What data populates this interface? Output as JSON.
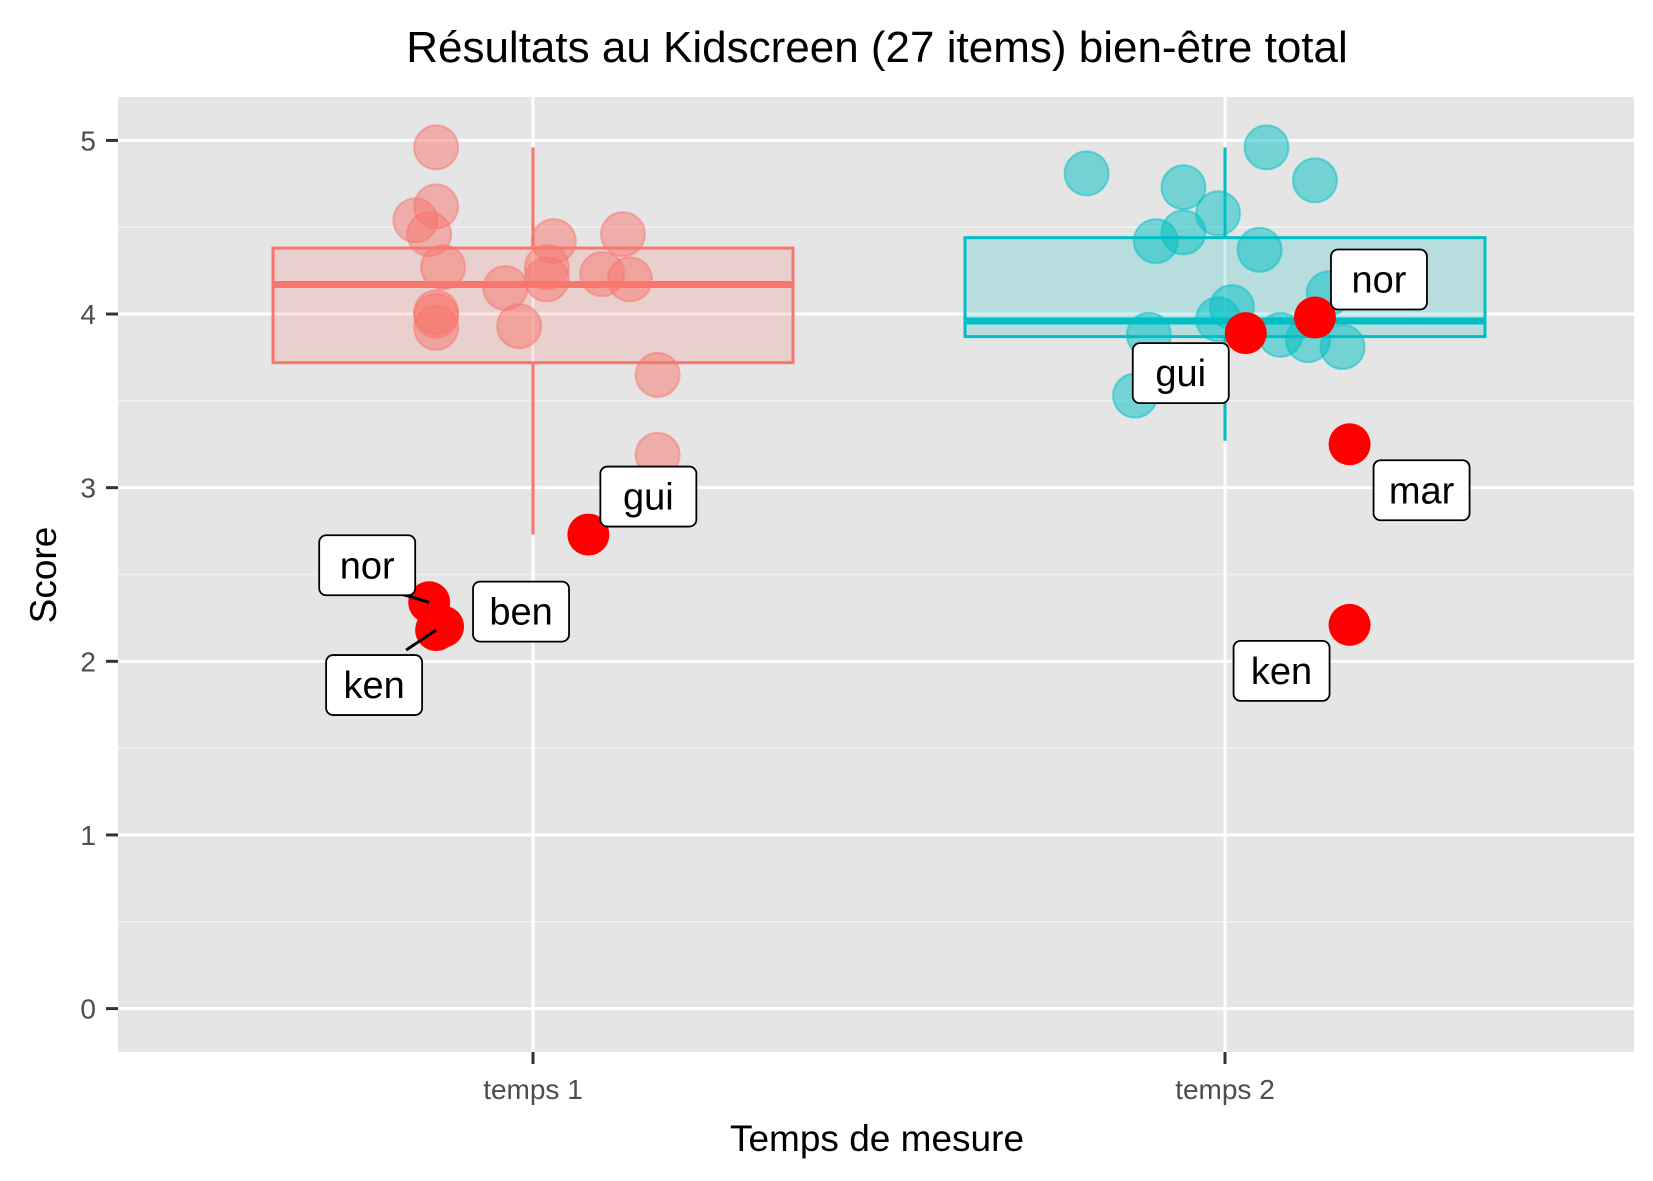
{
  "chart_data": {
    "type": "scatter",
    "title": "Résultats au Kidscreen (27 items) bien-être total",
    "xlabel": "Temps de mesure",
    "ylabel": "Score",
    "categories": [
      "temps 1",
      "temps 2"
    ],
    "ylim": [
      -0.25,
      5.25
    ],
    "yticks": [
      0,
      1,
      2,
      3,
      4,
      5
    ],
    "grid": true,
    "legend": "none",
    "colors": {
      "temps 1": "#f8766d",
      "temps 2": "#00bfc4",
      "highlight": "#ff0000",
      "panel": "#e5e5e5"
    },
    "boxplots": [
      {
        "category": "temps 1",
        "whisker_low": 2.73,
        "q1": 3.72,
        "median": 4.17,
        "q3": 4.38,
        "whisker_high": 4.96
      },
      {
        "category": "temps 2",
        "whisker_low": 3.27,
        "q1": 3.87,
        "median": 3.96,
        "q3": 4.44,
        "whisker_high": 4.96
      }
    ],
    "points": [
      {
        "category": "temps 1",
        "jitter": -0.14,
        "y": 4.96
      },
      {
        "category": "temps 1",
        "jitter": -0.14,
        "y": 4.62
      },
      {
        "category": "temps 1",
        "jitter": -0.17,
        "y": 4.54
      },
      {
        "category": "temps 1",
        "jitter": -0.15,
        "y": 4.46
      },
      {
        "category": "temps 1",
        "jitter": -0.13,
        "y": 4.27
      },
      {
        "category": "temps 1",
        "jitter": -0.14,
        "y": 4.01
      },
      {
        "category": "temps 1",
        "jitter": -0.14,
        "y": 3.99
      },
      {
        "category": "temps 1",
        "jitter": -0.14,
        "y": 3.92
      },
      {
        "category": "temps 1",
        "jitter": -0.04,
        "y": 4.15
      },
      {
        "category": "temps 1",
        "jitter": 0.03,
        "y": 4.42
      },
      {
        "category": "temps 1",
        "jitter": 0.02,
        "y": 4.27
      },
      {
        "category": "temps 1",
        "jitter": 0.02,
        "y": 4.2
      },
      {
        "category": "temps 1",
        "jitter": -0.02,
        "y": 3.93
      },
      {
        "category": "temps 1",
        "jitter": 0.13,
        "y": 4.46
      },
      {
        "category": "temps 1",
        "jitter": 0.1,
        "y": 4.23
      },
      {
        "category": "temps 1",
        "jitter": 0.14,
        "y": 4.2
      },
      {
        "category": "temps 1",
        "jitter": 0.18,
        "y": 3.65
      },
      {
        "category": "temps 1",
        "jitter": 0.18,
        "y": 3.19
      },
      {
        "category": "temps 2",
        "jitter": -0.2,
        "y": 4.81
      },
      {
        "category": "temps 2",
        "jitter": -0.06,
        "y": 4.73
      },
      {
        "category": "temps 2",
        "jitter": 0.06,
        "y": 4.96
      },
      {
        "category": "temps 2",
        "jitter": 0.13,
        "y": 4.77
      },
      {
        "category": "temps 2",
        "jitter": -0.01,
        "y": 4.58
      },
      {
        "category": "temps 2",
        "jitter": -0.06,
        "y": 4.47
      },
      {
        "category": "temps 2",
        "jitter": -0.1,
        "y": 4.42
      },
      {
        "category": "temps 2",
        "jitter": 0.05,
        "y": 4.37
      },
      {
        "category": "temps 2",
        "jitter": 0.15,
        "y": 4.12
      },
      {
        "category": "temps 2",
        "jitter": 0.01,
        "y": 4.04
      },
      {
        "category": "temps 2",
        "jitter": -0.01,
        "y": 3.97
      },
      {
        "category": "temps 2",
        "jitter": -0.11,
        "y": 3.88
      },
      {
        "category": "temps 2",
        "jitter": 0.08,
        "y": 3.88
      },
      {
        "category": "temps 2",
        "jitter": 0.12,
        "y": 3.85
      },
      {
        "category": "temps 2",
        "jitter": 0.17,
        "y": 3.81
      },
      {
        "category": "temps 2",
        "jitter": -0.13,
        "y": 3.53
      }
    ],
    "highlighted": [
      {
        "label": "nor",
        "category": "temps 1",
        "jitter": -0.15,
        "y": 2.34
      },
      {
        "label": "ken",
        "category": "temps 1",
        "jitter": -0.14,
        "y": 2.18
      },
      {
        "label": "ben",
        "category": "temps 1",
        "jitter": -0.13,
        "y": 2.2
      },
      {
        "label": "gui",
        "category": "temps 1",
        "jitter": 0.08,
        "y": 2.73
      },
      {
        "label": "nor",
        "category": "temps 2",
        "jitter": 0.13,
        "y": 3.98
      },
      {
        "label": "gui",
        "category": "temps 2",
        "jitter": 0.03,
        "y": 3.89
      },
      {
        "label": "mar",
        "category": "temps 2",
        "jitter": 0.18,
        "y": 3.25
      },
      {
        "label": "ken",
        "category": "temps 2",
        "jitter": 0.18,
        "y": 2.21
      }
    ]
  }
}
